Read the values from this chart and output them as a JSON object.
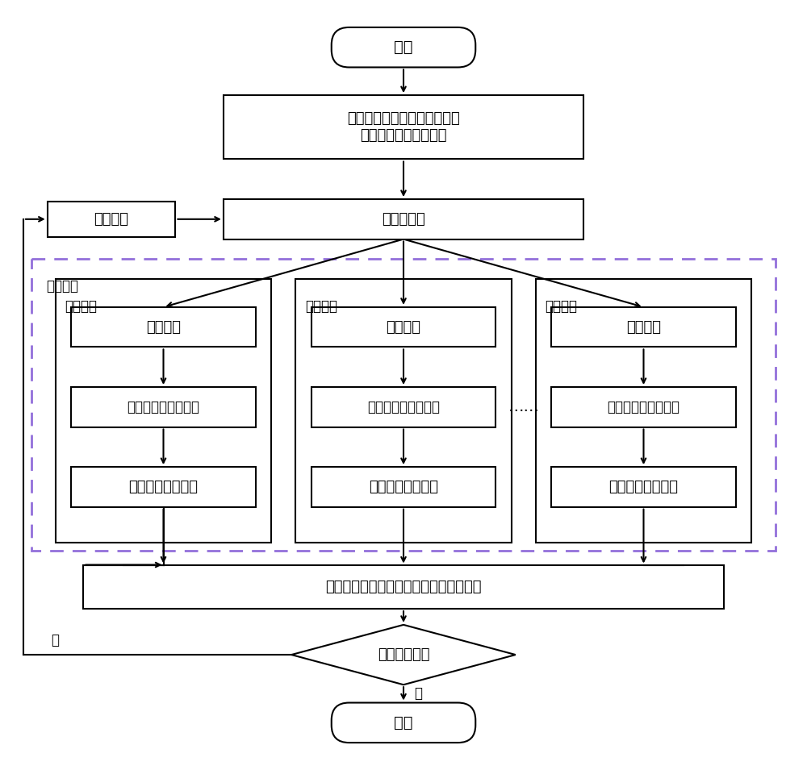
{
  "bg_color": "#ffffff",
  "border_color": "#000000",
  "dashed_color": "#9370DB",
  "lw": 1.5,
  "lw_thick": 2.0,
  "start_text": "开始",
  "config_text": "任务配置信息等（时间，输入\n软件集合，种子集合）",
  "scheduler_text": "调度选择器",
  "algo_text": "调度算法",
  "test_module_text": "测试模块",
  "node_text": "测试节点",
  "fuzz_text": "模糊测试",
  "exec_text": "执行监控，信息统计",
  "rec_text": "记录当前执行信息",
  "dots_text": "……",
  "stats_text": "统计测试软件、种子文件的测试执行信息",
  "decision_text": "测试是否结束",
  "yes_text": "是",
  "no_text": "否",
  "end_text": "结束",
  "font_size": 13,
  "font_size_sm": 12
}
